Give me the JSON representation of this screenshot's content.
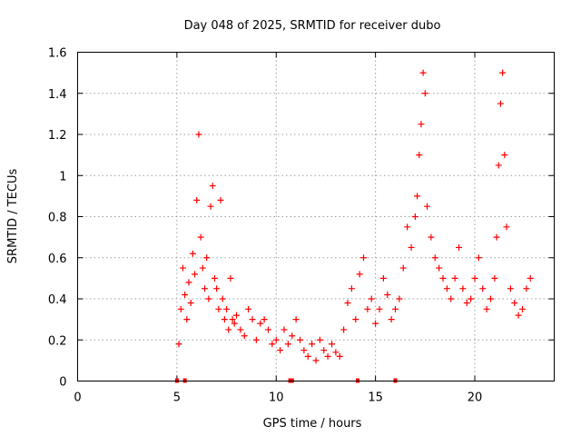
{
  "chart_data": {
    "type": "scatter",
    "title": "Day 048 of 2025, SRMTID for receiver dubo",
    "xlabel": "GPS time / hours",
    "ylabel": "SRMTID / TECUs",
    "xlim": [
      0,
      24
    ],
    "ylim": [
      0,
      1.6
    ],
    "x_ticks": [
      0,
      5,
      10,
      15,
      20
    ],
    "x_tick_labels": [
      "0",
      "5",
      "10",
      "15",
      "20"
    ],
    "y_ticks": [
      0,
      0.2,
      0.4,
      0.6,
      0.8,
      1.0,
      1.2,
      1.4,
      1.6
    ],
    "y_tick_labels": [
      "0",
      "0.2",
      "0.4",
      "0.6",
      "0.8",
      "1",
      "1.2",
      "1.4",
      "1.6"
    ],
    "grid": true,
    "series": [
      {
        "name": "SRMTID",
        "color": "#ff0000",
        "marker": "plus",
        "coverage_hours": [
          5.0,
          22.9
        ],
        "x": [
          5.1,
          5.2,
          5.3,
          5.4,
          5.5,
          5.6,
          5.7,
          5.8,
          5.9,
          6.0,
          6.1,
          6.2,
          6.3,
          6.4,
          6.5,
          6.6,
          6.7,
          6.8,
          6.9,
          7.0,
          7.1,
          7.2,
          7.3,
          7.4,
          7.5,
          7.6,
          7.7,
          7.8,
          7.9,
          8.0,
          8.2,
          8.4,
          8.6,
          8.8,
          9.0,
          9.2,
          9.4,
          9.6,
          9.8,
          10.0,
          10.2,
          10.4,
          10.6,
          10.8,
          11.0,
          11.2,
          11.4,
          11.6,
          11.8,
          12.0,
          12.2,
          12.4,
          12.6,
          12.8,
          13.0,
          13.2,
          13.4,
          13.6,
          13.8,
          14.0,
          14.2,
          14.4,
          14.6,
          14.8,
          15.0,
          15.2,
          15.4,
          15.6,
          15.8,
          16.0,
          16.2,
          16.4,
          16.6,
          16.8,
          17.0,
          17.1,
          17.2,
          17.3,
          17.4,
          17.5,
          17.6,
          17.8,
          18.0,
          18.2,
          18.4,
          18.6,
          18.8,
          19.0,
          19.2,
          19.4,
          19.6,
          19.8,
          20.0,
          20.2,
          20.4,
          20.6,
          20.8,
          21.0,
          21.1,
          21.2,
          21.3,
          21.4,
          21.5,
          21.6,
          21.8,
          22.0,
          22.2,
          22.4,
          22.6,
          22.8
        ],
        "y": [
          0.18,
          0.35,
          0.55,
          0.42,
          0.3,
          0.48,
          0.38,
          0.62,
          0.52,
          0.88,
          1.2,
          0.7,
          0.55,
          0.45,
          0.6,
          0.4,
          0.85,
          0.95,
          0.5,
          0.45,
          0.35,
          0.88,
          0.4,
          0.3,
          0.35,
          0.25,
          0.5,
          0.3,
          0.28,
          0.32,
          0.25,
          0.22,
          0.35,
          0.3,
          0.2,
          0.28,
          0.3,
          0.25,
          0.18,
          0.2,
          0.15,
          0.25,
          0.18,
          0.22,
          0.3,
          0.2,
          0.15,
          0.12,
          0.18,
          0.1,
          0.2,
          0.15,
          0.12,
          0.18,
          0.14,
          0.12,
          0.25,
          0.38,
          0.45,
          0.3,
          0.52,
          0.6,
          0.35,
          0.4,
          0.28,
          0.35,
          0.5,
          0.42,
          0.3,
          0.35,
          0.4,
          0.55,
          0.75,
          0.65,
          0.8,
          0.9,
          1.1,
          1.25,
          1.5,
          1.4,
          0.85,
          0.7,
          0.6,
          0.55,
          0.5,
          0.45,
          0.4,
          0.5,
          0.65,
          0.45,
          0.38,
          0.4,
          0.5,
          0.6,
          0.45,
          0.35,
          0.4,
          0.5,
          0.7,
          1.05,
          1.35,
          1.5,
          1.1,
          0.75,
          0.45,
          0.38,
          0.32,
          0.35,
          0.45,
          0.5
        ]
      }
    ],
    "baseline_markers_x": [
      5.0,
      5.4,
      10.7,
      10.8,
      14.1,
      16.0
    ]
  }
}
